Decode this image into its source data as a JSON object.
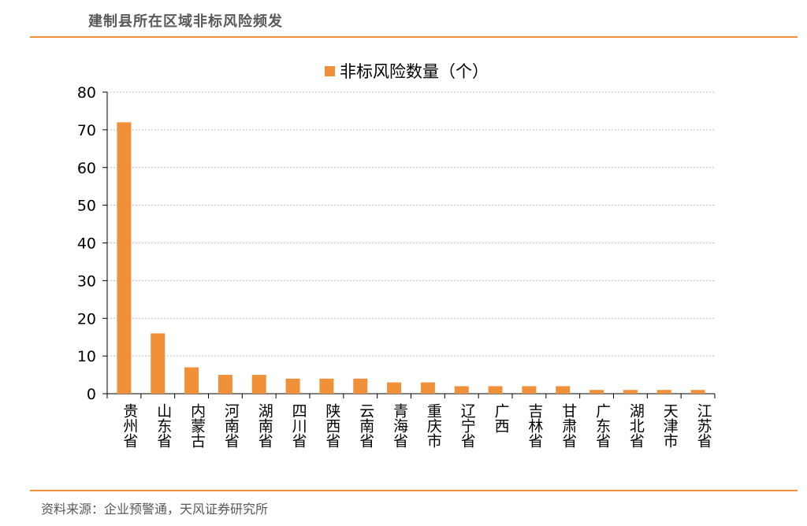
{
  "header": {
    "title": "建制县所在区域非标风险频发"
  },
  "footer": {
    "source": "资料来源：企业预警通，天风证券研究所"
  },
  "colors": {
    "accent": "#f0913a",
    "bar": "#f0913a"
  },
  "chart_data": {
    "type": "bar",
    "title": "",
    "xlabel": "",
    "ylabel": "",
    "legend": {
      "position": "top-center"
    },
    "grid": true,
    "ylim": [
      0,
      80
    ],
    "yticks": [
      0,
      10,
      20,
      30,
      40,
      50,
      60,
      70,
      80
    ],
    "categories": [
      "贵州省",
      "山东省",
      "内蒙古",
      "河南省",
      "湖南省",
      "四川省",
      "陕西省",
      "云南省",
      "青海省",
      "重庆市",
      "辽宁省",
      "广西",
      "吉林省",
      "甘肃省",
      "广东省",
      "湖北省",
      "天津市",
      "江苏省"
    ],
    "series": [
      {
        "name": "非标风险数量（个）",
        "values": [
          72,
          16,
          7,
          5,
          5,
          4,
          4,
          4,
          3,
          3,
          2,
          2,
          2,
          2,
          1,
          1,
          1,
          1
        ]
      }
    ]
  }
}
